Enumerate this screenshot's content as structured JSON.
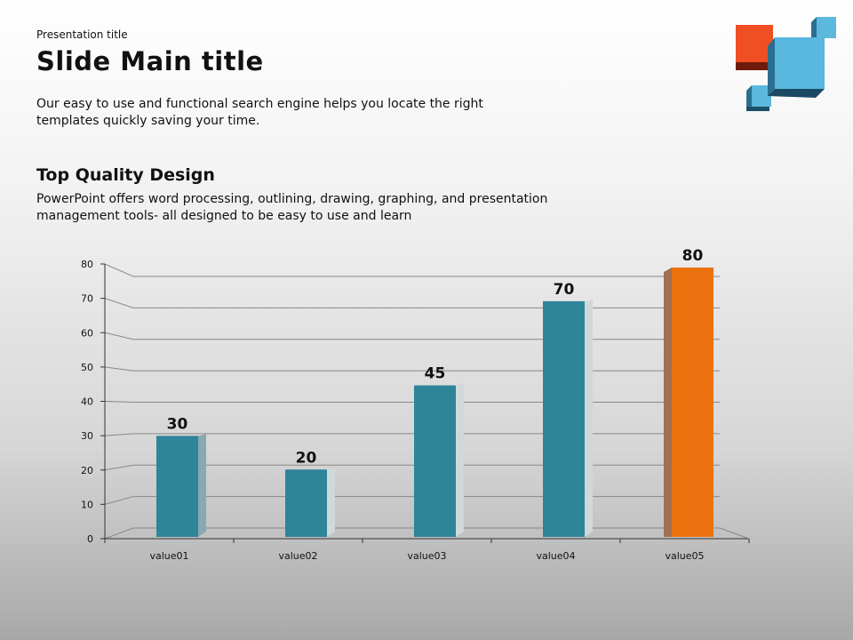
{
  "header": {
    "presentation_title": "Presentation title",
    "main_title": "Slide Main title",
    "intro": "Our easy to use and functional search engine helps you locate the right templates quickly saving your time."
  },
  "section": {
    "title": "Top Quality Design",
    "body": "PowerPoint offers word processing, outlining, drawing, graphing, and presentation management tools- all designed to be easy to use and learn"
  },
  "chart_data": {
    "type": "bar",
    "categories": [
      "value01",
      "value02",
      "value03",
      "value04",
      "value05"
    ],
    "values": [
      30,
      20,
      45,
      70,
      80
    ],
    "ylim": [
      0,
      80
    ],
    "yticks": [
      0,
      10,
      20,
      30,
      40,
      50,
      60,
      70,
      80
    ],
    "colors": [
      "#2e8499",
      "#2e8499",
      "#2e8499",
      "#2e8499",
      "#ec720f"
    ],
    "grid": true,
    "title": "",
    "xlabel": "",
    "ylabel": ""
  }
}
